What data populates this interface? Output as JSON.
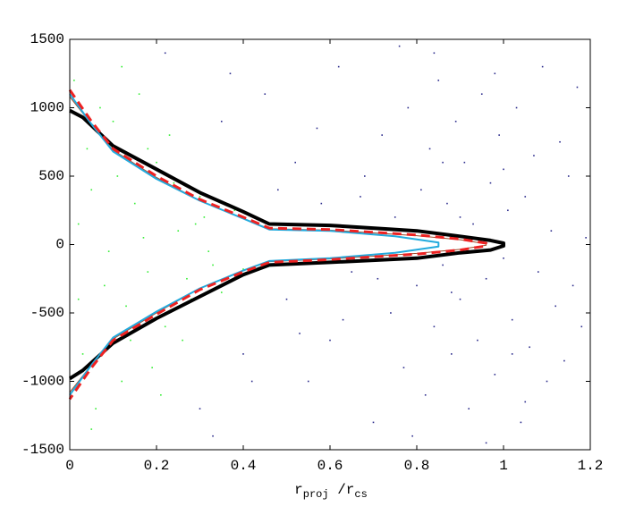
{
  "chart_data": {
    "type": "scatter",
    "xlabel_parts": [
      "r",
      "proj",
      " /r",
      "cs"
    ],
    "xlim": [
      0,
      1.2
    ],
    "ylim": [
      -1500,
      1500
    ],
    "xticks": [
      0,
      0.2,
      0.4,
      0.6,
      0.8,
      1,
      1.2
    ],
    "yticks": [
      -1500,
      -1000,
      -500,
      0,
      500,
      1000,
      1500
    ],
    "grid": false,
    "scatter": [
      {
        "color": "#33ee33",
        "x": [
          0.01,
          0.03,
          0.05,
          0.02,
          0.08,
          0.1,
          0.12,
          0.15,
          0.18,
          0.2,
          0.22,
          0.25,
          0.28,
          0.3,
          0.33,
          0.06,
          0.04,
          0.09,
          0.11,
          0.14,
          0.16,
          0.19,
          0.24,
          0.27,
          0.31,
          0.35,
          0.07,
          0.13,
          0.17,
          0.21,
          0.23,
          0.26,
          0.29,
          0.32,
          0.38,
          0.4,
          0.02,
          0.05,
          0.12,
          0.18
        ],
        "values": [
          1200,
          -800,
          400,
          150,
          -300,
          900,
          -1000,
          300,
          -200,
          600,
          -600,
          100,
          -400,
          350,
          -150,
          -1200,
          700,
          -50,
          500,
          -700,
          1100,
          -900,
          450,
          -250,
          200,
          -350,
          1000,
          -450,
          50,
          -1100,
          800,
          -700,
          150,
          -50,
          250,
          -180,
          -400,
          -1350,
          1300,
          700
        ]
      },
      {
        "color": "#2b2b8c",
        "x": [
          0.22,
          0.3,
          0.35,
          0.4,
          0.45,
          0.5,
          0.52,
          0.55,
          0.58,
          0.6,
          0.62,
          0.65,
          0.68,
          0.7,
          0.72,
          0.74,
          0.75,
          0.77,
          0.78,
          0.8,
          0.81,
          0.82,
          0.83,
          0.84,
          0.85,
          0.86,
          0.87,
          0.88,
          0.89,
          0.9,
          0.91,
          0.92,
          0.93,
          0.94,
          0.95,
          0.96,
          0.97,
          0.98,
          0.99,
          1.0,
          1.01,
          1.02,
          1.03,
          1.04,
          1.05,
          1.06,
          1.07,
          1.08,
          1.09,
          1.1,
          1.11,
          1.12,
          1.13,
          1.14,
          1.15,
          1.16,
          1.17,
          1.18,
          1.19,
          0.79,
          0.76,
          0.71,
          0.67,
          0.63,
          0.57,
          0.53,
          0.48,
          0.42,
          0.37,
          0.33,
          0.86,
          0.88,
          0.9,
          0.92,
          0.84,
          0.96,
          0.98,
          1.0,
          1.02,
          1.05
        ],
        "values": [
          1400,
          -1200,
          900,
          -800,
          1100,
          -400,
          600,
          -1000,
          300,
          -700,
          1300,
          -200,
          500,
          -1300,
          800,
          -500,
          200,
          -900,
          1000,
          -300,
          400,
          -1100,
          700,
          -600,
          1200,
          -150,
          300,
          -800,
          900,
          -400,
          600,
          -1200,
          150,
          -700,
          1100,
          -250,
          450,
          -950,
          800,
          -100,
          250,
          -550,
          1000,
          -1300,
          350,
          -750,
          650,
          -200,
          1300,
          -1000,
          100,
          -450,
          750,
          -850,
          500,
          -300,
          1150,
          -600,
          50,
          -1400,
          1450,
          -250,
          350,
          -550,
          850,
          -650,
          400,
          -1000,
          1250,
          -1400,
          600,
          -350,
          200,
          -50,
          1400,
          -1450,
          1250,
          550,
          -800,
          -1150
        ]
      }
    ],
    "lines": [
      {
        "color": "#000000",
        "line_width": 4,
        "dashed": false,
        "x": [
          0,
          0.03,
          0.1,
          0.2,
          0.3,
          0.4,
          0.46,
          0.6,
          0.8,
          0.9,
          0.97,
          1.0,
          1.0,
          0.97,
          0.9,
          0.8,
          0.6,
          0.46,
          0.4,
          0.3,
          0.2,
          0.1,
          0.03,
          0
        ],
        "values": [
          980,
          930,
          720,
          550,
          380,
          240,
          150,
          140,
          100,
          60,
          30,
          10,
          -10,
          -40,
          -60,
          -100,
          -130,
          -150,
          -220,
          -380,
          -540,
          -720,
          -920,
          -980
        ]
      },
      {
        "color": "#9b4a2a",
        "line_width": 1,
        "dashed": false,
        "x": [
          0,
          0.05,
          0.1,
          0.2,
          0.3,
          0.4,
          0.46,
          0.6,
          0.8,
          0.9,
          0.96,
          0.96,
          0.9,
          0.8,
          0.6,
          0.46,
          0.4,
          0.3,
          0.2,
          0.1,
          0.05,
          0
        ],
        "values": [
          1080,
          880,
          690,
          490,
          320,
          190,
          115,
          105,
          65,
          35,
          5,
          -5,
          -35,
          -65,
          -105,
          -125,
          -190,
          -320,
          -500,
          -690,
          -880,
          -1080
        ]
      },
      {
        "color": "#22aadd",
        "line_width": 2,
        "dashed": false,
        "x": [
          0,
          0.05,
          0.1,
          0.2,
          0.3,
          0.4,
          0.46,
          0.6,
          0.75,
          0.85,
          0.85,
          0.75,
          0.6,
          0.46,
          0.4,
          0.3,
          0.2,
          0.1,
          0.05,
          0
        ],
        "values": [
          1100,
          880,
          680,
          480,
          320,
          190,
          110,
          100,
          60,
          15,
          -15,
          -60,
          -100,
          -120,
          -190,
          -320,
          -490,
          -680,
          -880,
          -1100
        ]
      },
      {
        "color": "#ee2222",
        "line_width": 3,
        "dashed": true,
        "x": [
          0,
          0.05,
          0.1,
          0.2,
          0.3,
          0.4,
          0.46,
          0.6,
          0.8,
          0.9,
          0.96,
          0.96,
          0.9,
          0.8,
          0.6,
          0.46,
          0.4,
          0.3,
          0.2,
          0.1,
          0.05,
          0
        ],
        "values": [
          1130,
          900,
          700,
          500,
          330,
          200,
          120,
          110,
          70,
          40,
          10,
          -10,
          -40,
          -70,
          -110,
          -130,
          -200,
          -330,
          -510,
          -700,
          -900,
          -1130
        ]
      }
    ]
  }
}
